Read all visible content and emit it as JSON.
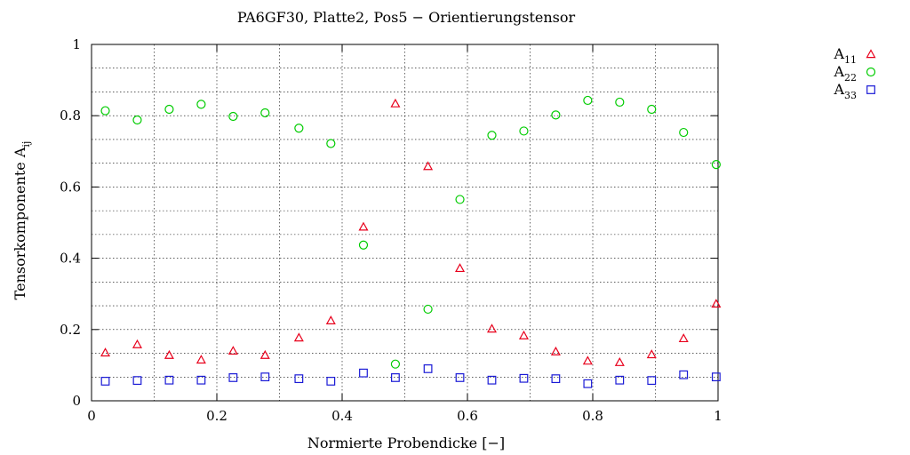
{
  "chart_data": {
    "type": "scatter",
    "title": "PA6GF30, Platte2, Pos5 − Orientierungstensor",
    "xlabel": "Normierte Probendicke [−]",
    "ylabel": "Tensorkomponente A",
    "ylabel_sub": "ij",
    "xlim": [
      0,
      1
    ],
    "ylim": [
      0,
      1
    ],
    "x_ticks": [
      0,
      0.2,
      0.4,
      0.6,
      0.8,
      1
    ],
    "x_tick_labels": [
      "0",
      "0.2",
      "0.4",
      "0.6",
      "0.8",
      "1"
    ],
    "y_ticks": [
      0,
      0.2,
      0.4,
      0.6,
      0.8,
      1
    ],
    "y_tick_labels": [
      "0",
      "0.2",
      "0.4",
      "0.6",
      "0.8",
      "1"
    ],
    "grid": true,
    "legend_position": "top-right outside",
    "x": [
      0.022,
      0.073,
      0.124,
      0.175,
      0.226,
      0.277,
      0.331,
      0.382,
      0.434,
      0.485,
      0.537,
      0.588,
      0.639,
      0.69,
      0.741,
      0.792,
      0.843,
      0.894,
      0.945,
      0.997
    ],
    "series": [
      {
        "name": "A",
        "name_sub": "11",
        "marker": "triangle",
        "color": "#e8001c",
        "values": [
          0.135,
          0.158,
          0.128,
          0.115,
          0.14,
          0.128,
          0.177,
          0.225,
          0.488,
          0.834,
          0.658,
          0.372,
          0.202,
          0.183,
          0.138,
          0.112,
          0.108,
          0.13,
          0.175,
          0.272
        ]
      },
      {
        "name": "A",
        "name_sub": "22",
        "marker": "circle",
        "color": "#00cc00",
        "values": [
          0.814,
          0.788,
          0.818,
          0.832,
          0.798,
          0.808,
          0.765,
          0.722,
          0.437,
          0.103,
          0.257,
          0.565,
          0.745,
          0.757,
          0.802,
          0.843,
          0.838,
          0.818,
          0.753,
          0.663
        ]
      },
      {
        "name": "A",
        "name_sub": "33",
        "marker": "square",
        "color": "#1a1ad6",
        "values": [
          0.055,
          0.057,
          0.058,
          0.058,
          0.065,
          0.067,
          0.062,
          0.055,
          0.078,
          0.065,
          0.09,
          0.065,
          0.058,
          0.063,
          0.062,
          0.048,
          0.058,
          0.057,
          0.073,
          0.067
        ]
      }
    ]
  }
}
